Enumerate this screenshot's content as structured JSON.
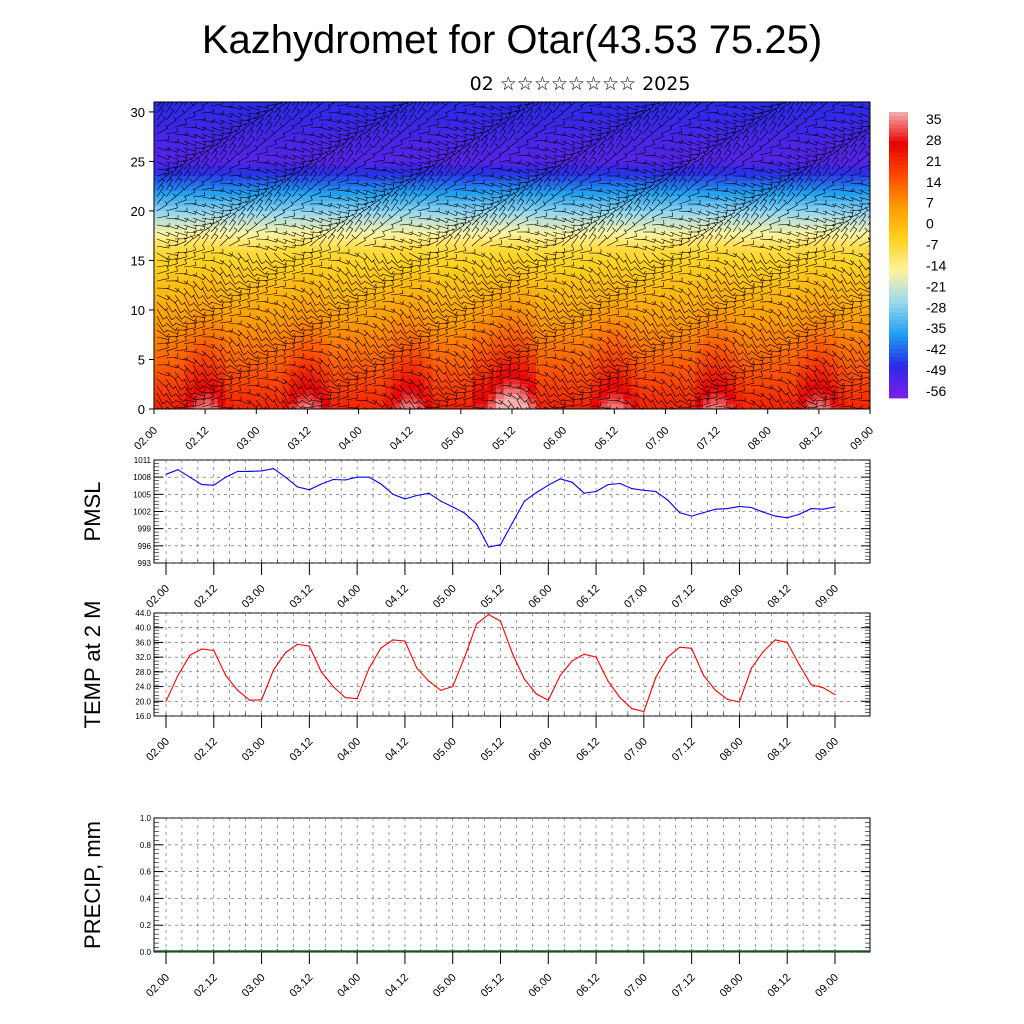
{
  "header": {
    "title": "Kazhydromet for Otar(43.53 75.25)",
    "subtitle": "02 ☆☆☆☆☆☆☆☆ 2025"
  },
  "colors": {
    "pmsl_line": "#0000ff",
    "temp_line": "#ff0000",
    "grid": "#555555",
    "palette": [
      "#7d1fe8",
      "#2a2ae8",
      "#1e9ef0",
      "#9ad8ee",
      "#fff3a0",
      "#ffd21e",
      "#ff9b00",
      "#ff4a00",
      "#e80000",
      "#f3b0b0"
    ]
  },
  "chart_data": [
    {
      "type": "heatmap",
      "name": "cross-section",
      "x_ticks": [
        "02.00",
        "02.12",
        "03.00",
        "03.12",
        "04.00",
        "04.12",
        "05.00",
        "05.12",
        "06.00",
        "06.12",
        "07.00",
        "07.12",
        "08.00",
        "08.12",
        "09.00"
      ],
      "y_ticks": [
        "0",
        "5",
        "10",
        "15",
        "20",
        "25",
        "30"
      ],
      "ylim": [
        0,
        31
      ],
      "colorbar_labels": [
        "35",
        "28",
        "21",
        "14",
        "7",
        "0",
        "-7",
        "-14",
        "-21",
        "-28",
        "-35",
        "-42",
        "-49",
        "-56"
      ],
      "clim": [
        -60,
        38
      ]
    },
    {
      "type": "line",
      "name": "pmsl",
      "ylabel": "PMSL",
      "ylim": [
        993,
        1011
      ],
      "y_ticks": [
        "1011",
        "1008",
        "1005",
        "1002",
        "999",
        "996",
        "993"
      ],
      "x_ticks": [
        "02.00",
        "02.12",
        "03.00",
        "03.12",
        "04.00",
        "04.12",
        "05.00",
        "05.12",
        "06.00",
        "06.12",
        "07.00",
        "07.12",
        "08.00",
        "08.12",
        "09.00"
      ],
      "values": [
        1008.5,
        1009.3,
        1008,
        1006.7,
        1006.6,
        1008,
        1009,
        1009,
        1009.1,
        1009.5,
        1008,
        1006.3,
        1005.8,
        1006.8,
        1007.6,
        1007.5,
        1008,
        1008,
        1006.8,
        1005,
        1004.2,
        1004.8,
        1005.2,
        1003.8,
        1002.8,
        1001.7,
        999.8,
        995.8,
        996.2,
        1000,
        1003.8,
        1005.3,
        1006.6,
        1007.7,
        1007.1,
        1005.2,
        1005.5,
        1006.7,
        1006.9,
        1006,
        1005.7,
        1005.5,
        1004,
        1001.8,
        1001.2,
        1001.8,
        1002.4,
        1002.5,
        1002.9,
        1002.7,
        1001.9,
        1001.2,
        1000.9,
        1001.5,
        1002.5,
        1002.4,
        1002.8
      ]
    },
    {
      "type": "line",
      "name": "temp",
      "ylabel": "TEMP at 2 M",
      "ylim": [
        16,
        44
      ],
      "y_ticks": [
        "44.0",
        "40.0",
        "36.0",
        "32.0",
        "28.0",
        "24.0",
        "20.0",
        "16.0"
      ],
      "x_ticks": [
        "02.00",
        "02.12",
        "03.00",
        "03.12",
        "04.00",
        "04.12",
        "05.00",
        "05.12",
        "06.00",
        "06.12",
        "07.00",
        "07.12",
        "08.00",
        "08.12",
        "09.00"
      ],
      "values": [
        20,
        27,
        32.5,
        34.2,
        33.8,
        27,
        23,
        20.3,
        20.4,
        28.5,
        33.2,
        35.5,
        35,
        28,
        24,
        21,
        20.7,
        29,
        34.5,
        36.7,
        36.4,
        29,
        25.5,
        23,
        24,
        32,
        41,
        43.6,
        41.8,
        33,
        26,
        22,
        20.3,
        27,
        31,
        32.8,
        32,
        25.5,
        21,
        18,
        17.2,
        26.5,
        32,
        34.7,
        34.4,
        27,
        23,
        20.5,
        19.8,
        29,
        33.5,
        36.7,
        36,
        30,
        24.5,
        23.7,
        21.8
      ]
    },
    {
      "type": "bar",
      "name": "precip",
      "ylabel": "PRECIP, mm",
      "ylim": [
        0,
        1
      ],
      "y_ticks": [
        "1.0",
        "0.8",
        "0.6",
        "0.4",
        "0.2",
        "0.0"
      ],
      "x_ticks": [
        "02.00",
        "02.12",
        "03.00",
        "03.12",
        "04.00",
        "04.12",
        "05.00",
        "05.12",
        "06.00",
        "06.12",
        "07.00",
        "07.12",
        "08.00",
        "08.12",
        "09.00"
      ],
      "values": [
        0,
        0,
        0,
        0,
        0,
        0,
        0,
        0,
        0,
        0,
        0,
        0,
        0,
        0,
        0,
        0,
        0,
        0,
        0,
        0,
        0,
        0,
        0,
        0,
        0,
        0,
        0,
        0,
        0,
        0,
        0,
        0,
        0,
        0,
        0,
        0,
        0,
        0,
        0,
        0,
        0,
        0,
        0,
        0,
        0,
        0,
        0,
        0,
        0,
        0,
        0,
        0,
        0,
        0,
        0,
        0,
        0
      ]
    }
  ]
}
